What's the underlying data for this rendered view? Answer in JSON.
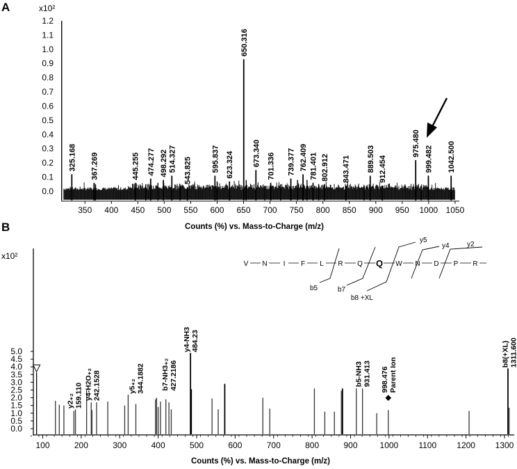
{
  "chart_data": [
    {
      "panel": "A",
      "type": "bar",
      "xlabel": "Counts (%) vs. Mass-to-Charge (m/z)",
      "y_multiplier": "x10²",
      "xlim": [
        305,
        1058
      ],
      "ylim": [
        -0.05,
        1.25
      ],
      "xticks": [
        350,
        400,
        450,
        500,
        550,
        600,
        650,
        700,
        750,
        800,
        850,
        900,
        950,
        1000,
        1050
      ],
      "yticks": [
        "0.0",
        "0.1",
        "0.2",
        "0.3",
        "0.4",
        "0.5",
        "0.6",
        "0.7",
        "0.8",
        "0.9",
        "1.0",
        "1.1",
        "1.2"
      ],
      "peaks": [
        {
          "mz": 325.168,
          "y": 0.12,
          "label": "325.168"
        },
        {
          "mz": 367.269,
          "y": 0.06,
          "label": "367.269"
        },
        {
          "mz": 445.255,
          "y": 0.06,
          "label": "445.255"
        },
        {
          "mz": 474.277,
          "y": 0.09,
          "label": "474.277"
        },
        {
          "mz": 498.292,
          "y": 0.08,
          "label": "498.292"
        },
        {
          "mz": 514.327,
          "y": 0.11,
          "label": "514.327"
        },
        {
          "mz": 543.825,
          "y": 0.03,
          "label": "543.825"
        },
        {
          "mz": 595.837,
          "y": 0.11,
          "label": "595.837"
        },
        {
          "mz": 623.324,
          "y": 0.07,
          "label": "623.324"
        },
        {
          "mz": 650.316,
          "y": 0.93,
          "label": "650.316"
        },
        {
          "mz": 673.34,
          "y": 0.15,
          "label": "673.340"
        },
        {
          "mz": 701.336,
          "y": 0.06,
          "label": "701.336"
        },
        {
          "mz": 739.377,
          "y": 0.09,
          "label": "739.377"
        },
        {
          "mz": 762.409,
          "y": 0.12,
          "label": "762.409"
        },
        {
          "mz": 781.401,
          "y": 0.06,
          "label": "781.401"
        },
        {
          "mz": 802.912,
          "y": 0.05,
          "label": "802.912"
        },
        {
          "mz": 843.471,
          "y": 0.04,
          "label": "843.471"
        },
        {
          "mz": 889.503,
          "y": 0.11,
          "label": "889.503"
        },
        {
          "mz": 912.454,
          "y": 0.04,
          "label": "912.454"
        },
        {
          "mz": 975.48,
          "y": 0.22,
          "label": "975.480"
        },
        {
          "mz": 999.482,
          "y": 0.11,
          "label": "999.482"
        },
        {
          "mz": 1042.5,
          "y": 0.11,
          "label": "1042.500"
        }
      ],
      "unlabeled_peaks": [
        {
          "mz": 306,
          "y": 1.2
        },
        {
          "mz": 370,
          "y": 0.05
        },
        {
          "mz": 465,
          "y": 0.05
        },
        {
          "mz": 488,
          "y": 0.06
        },
        {
          "mz": 530,
          "y": 0.04
        },
        {
          "mz": 600,
          "y": 0.07
        },
        {
          "mz": 655,
          "y": 0.08
        },
        {
          "mz": 690,
          "y": 0.04
        },
        {
          "mz": 720,
          "y": 0.05
        },
        {
          "mz": 752,
          "y": 0.08
        },
        {
          "mz": 770,
          "y": 0.08
        },
        {
          "mz": 792,
          "y": 0.05
        },
        {
          "mz": 878,
          "y": 0.03
        },
        {
          "mz": 986,
          "y": 0.04
        }
      ],
      "annotation": {
        "type": "arrow",
        "target_label": "999.482"
      }
    },
    {
      "panel": "B",
      "type": "bar",
      "xlabel": "Counts (%) vs. Mass-to-Charge (m/z)",
      "y_multiplier": "x10²",
      "xlim": [
        65,
        1310
      ],
      "ylim": [
        -0.2,
        5.5
      ],
      "xticks": [
        100,
        200,
        300,
        400,
        500,
        600,
        700,
        800,
        900,
        1000,
        1100,
        1200,
        1300
      ],
      "yticks": [
        "0.0",
        "0.5",
        "1.0",
        "1.5",
        "2.0",
        "2.5",
        "3.0",
        "3.5",
        "4.0",
        "4.5",
        "5.0"
      ],
      "peaks": [
        {
          "mz": 133,
          "y": 1.8
        },
        {
          "mz": 143,
          "y": 1.55
        },
        {
          "mz": 155,
          "y": 1.5
        },
        {
          "mz": 181,
          "y": 1.15
        },
        {
          "mz": 185,
          "y": 1.25
        },
        {
          "mz": 214,
          "y": 2.5
        },
        {
          "mz": 226,
          "y": 1.7
        },
        {
          "mz": 228,
          "y": 1.2
        },
        {
          "mz": 240,
          "y": 1.7
        },
        {
          "mz": 269,
          "y": 1.75
        },
        {
          "mz": 313,
          "y": 1.5
        },
        {
          "mz": 322,
          "y": 2.2
        },
        {
          "mz": 342,
          "y": 1.6
        },
        {
          "mz": 393,
          "y": 1.9
        },
        {
          "mz": 396,
          "y": 2.0
        },
        {
          "mz": 400,
          "y": 1.4
        },
        {
          "mz": 406,
          "y": 1.75
        },
        {
          "mz": 420,
          "y": 1.9
        },
        {
          "mz": 428,
          "y": 1.7
        },
        {
          "mz": 434,
          "y": 1.25
        },
        {
          "mz": 484,
          "y": 4.9
        },
        {
          "mz": 486,
          "y": 2.55
        },
        {
          "mz": 540,
          "y": 1.95
        },
        {
          "mz": 556,
          "y": 1.25
        },
        {
          "mz": 573,
          "y": 2.9
        },
        {
          "mz": 672,
          "y": 2.0
        },
        {
          "mz": 690,
          "y": 1.3
        },
        {
          "mz": 806,
          "y": 2.6
        },
        {
          "mz": 833,
          "y": 1.1
        },
        {
          "mz": 858,
          "y": 1.1
        },
        {
          "mz": 876,
          "y": 2.45
        },
        {
          "mz": 879,
          "y": 2.6
        },
        {
          "mz": 915,
          "y": 2.6
        },
        {
          "mz": 931,
          "y": 2.6
        },
        {
          "mz": 968,
          "y": 1.0
        },
        {
          "mz": 998,
          "y": 1.2
        },
        {
          "mz": 1208,
          "y": 1.15
        },
        {
          "mz": 1309,
          "y": 3.9
        },
        {
          "mz": 1312,
          "y": 1.35
        }
      ],
      "labels": [
        {
          "mz": 181,
          "y": 1.3,
          "lines": [
            "y2₊₂",
            "159.110"
          ]
        },
        {
          "mz": 228,
          "y": 1.8,
          "lines": [
            "y4-H2O₊₂",
            "242.1528"
          ]
        },
        {
          "mz": 342,
          "y": 2.25,
          "lines": [
            "y5₊₂",
            "344.1882"
          ]
        },
        {
          "mz": 428,
          "y": 2.45,
          "lines": [
            "b7-NH3₊₂",
            "427.2186"
          ]
        },
        {
          "mz": 484,
          "y": 4.95,
          "lines": [
            "y4-NH3",
            "484.23"
          ]
        },
        {
          "mz": 931,
          "y": 2.7,
          "lines": [
            "b5-NH3",
            "931.413"
          ]
        },
        {
          "mz": 998,
          "y": 2.05,
          "lines": [
            "998.476",
            "Parent Ion"
          ],
          "marker": "◆"
        },
        {
          "mz": 1312,
          "y": 3.95,
          "lines": [
            "b8(+XL)",
            "1311.600"
          ]
        }
      ],
      "triangle_marker": {
        "mz": 84,
        "y": 3.9
      },
      "sequence": {
        "residues": [
          "V",
          "N",
          "I",
          "F",
          "L",
          "R",
          "Q",
          "Q",
          "W",
          "N",
          "D",
          "P",
          "R"
        ],
        "emphasized_residue_index": 7,
        "fragments": [
          "b5",
          "b7",
          "b8 +XL",
          "y5",
          "y4",
          "y2"
        ]
      }
    }
  ],
  "panel_letters": [
    "A",
    "B"
  ]
}
